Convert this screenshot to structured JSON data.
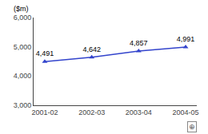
{
  "chart_data": {
    "type": "line",
    "ylabel": "($m)",
    "categories": [
      "2001-02",
      "2002-03",
      "2003-04",
      "2004-05"
    ],
    "values": [
      4491,
      4642,
      4857,
      4991
    ],
    "value_labels": [
      "4,491",
      "4,642",
      "4,857",
      "4,991"
    ],
    "data_labels": true,
    "color": "#3344cc",
    "marker": "triangle-up",
    "ylim": [
      3000,
      6000
    ],
    "yticks": [
      {
        "value": 3000,
        "label": "3,000"
      },
      {
        "value": 4000,
        "label": "4,000"
      },
      {
        "value": 5000,
        "label": "5,000"
      },
      {
        "value": 6000,
        "label": "6,000"
      }
    ],
    "grid": false,
    "annotations": [
      "⊕"
    ]
  }
}
